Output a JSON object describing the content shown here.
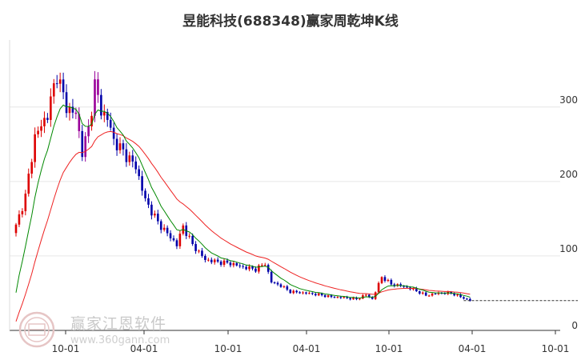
{
  "chart_data": {
    "type": "candlestick",
    "title": "昱能科技(688348)赢家周乾坤K线",
    "y_ticks": [
      0,
      100,
      200,
      300
    ],
    "ylim": [
      0,
      390
    ],
    "x_tick_labels": [
      "10-01",
      "04-01",
      "10-01",
      "04-01",
      "10-01",
      "04-01",
      "10-01"
    ],
    "period": "weekly",
    "grid": "horizontal",
    "last_close_line": 40,
    "colors": {
      "up": "#dd0000",
      "down": "#0000aa",
      "turn": "#990099",
      "short_ma": "#008800",
      "long_ma": "#ee2222",
      "grid": "#e6e6e6",
      "last_close": "#333333"
    },
    "watermark": {
      "name": "赢家江恩软件",
      "url": "www.360gann.com"
    }
  }
}
